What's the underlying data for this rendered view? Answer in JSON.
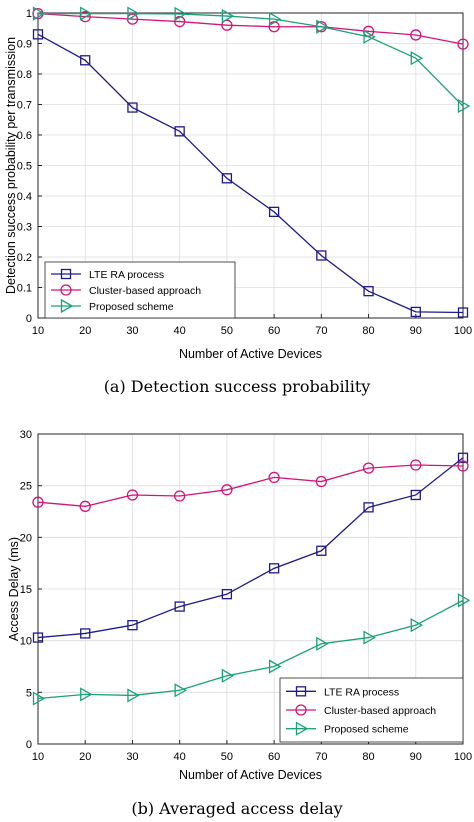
{
  "chart_data": [
    {
      "type": "line",
      "caption": "(a) Detection success probability",
      "xlabel": "Number of Active Devices",
      "ylabel": "Detection success probability per transmission",
      "xlim": [
        10,
        100
      ],
      "ylim": [
        0,
        1
      ],
      "x": [
        10,
        20,
        30,
        40,
        50,
        60,
        70,
        80,
        90,
        100
      ],
      "xticks": [
        "10",
        "20",
        "30",
        "40",
        "50",
        "60",
        "70",
        "80",
        "90",
        "100"
      ],
      "yticks": [
        "0",
        "0.1",
        "0.2",
        "0.3",
        "0.4",
        "0.5",
        "0.6",
        "0.7",
        "0.8",
        "0.9",
        "1"
      ],
      "grid": true,
      "legend": "bottom-left",
      "series": [
        {
          "name": "LTE RA process",
          "color": "#1f1a8a",
          "marker": "square",
          "values": [
            0.93,
            0.845,
            0.69,
            0.612,
            0.458,
            0.348,
            0.205,
            0.088,
            0.02,
            0.018
          ]
        },
        {
          "name": "Cluster-based approach",
          "color": "#d4147a",
          "marker": "circle",
          "values": [
            0.998,
            0.988,
            0.98,
            0.972,
            0.96,
            0.955,
            0.955,
            0.94,
            0.928,
            0.898
          ]
        },
        {
          "name": "Proposed scheme",
          "color": "#1aa37a",
          "marker": "triangle-right",
          "values": [
            0.998,
            0.998,
            0.998,
            0.997,
            0.99,
            0.98,
            0.955,
            0.922,
            0.852,
            0.695
          ]
        }
      ]
    },
    {
      "type": "line",
      "caption": "(b) Averaged access delay",
      "xlabel": "Number of Active Devices",
      "ylabel": "Access Delay (ms)",
      "xlim": [
        10,
        100
      ],
      "ylim": [
        0,
        30
      ],
      "x": [
        10,
        20,
        30,
        40,
        50,
        60,
        70,
        80,
        90,
        100
      ],
      "xticks": [
        "10",
        "20",
        "30",
        "40",
        "50",
        "60",
        "70",
        "80",
        "90",
        "100"
      ],
      "yticks": [
        "0",
        "5",
        "10",
        "15",
        "20",
        "25",
        "30"
      ],
      "grid": true,
      "legend": "bottom-right",
      "series": [
        {
          "name": "LTE RA process",
          "color": "#1f1a8a",
          "marker": "square",
          "values": [
            10.3,
            10.7,
            11.5,
            13.3,
            14.5,
            17.0,
            18.7,
            22.9,
            24.1,
            27.7
          ]
        },
        {
          "name": "Cluster-based approach",
          "color": "#d4147a",
          "marker": "circle",
          "values": [
            23.4,
            23.0,
            24.1,
            24.0,
            24.6,
            25.8,
            25.4,
            26.7,
            27.0,
            26.9
          ]
        },
        {
          "name": "Proposed scheme",
          "color": "#1aa37a",
          "marker": "triangle-right",
          "values": [
            4.4,
            4.8,
            4.7,
            5.2,
            6.6,
            7.5,
            9.7,
            10.3,
            11.5,
            13.9
          ]
        }
      ]
    }
  ]
}
